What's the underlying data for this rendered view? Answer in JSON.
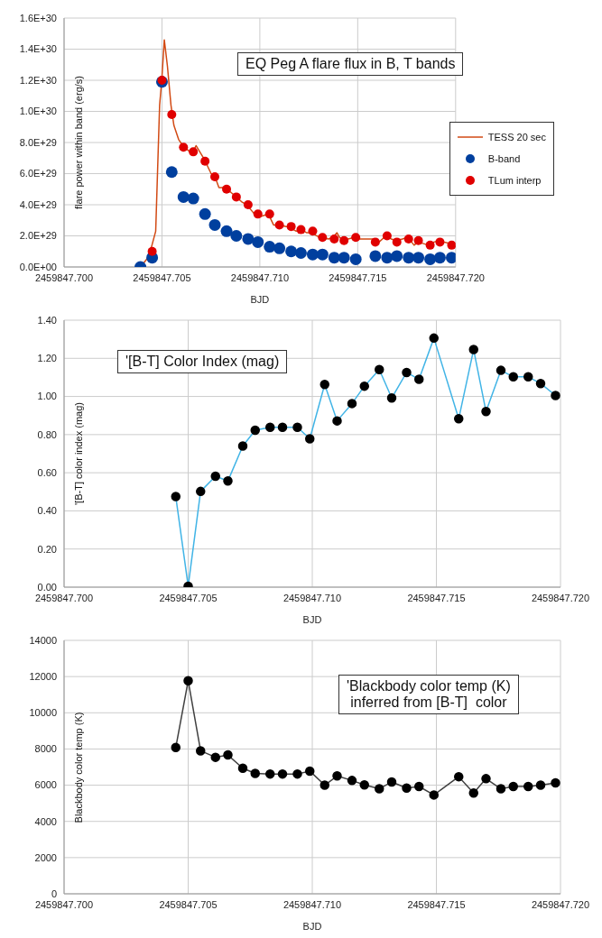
{
  "chart_data": [
    {
      "type": "line",
      "title": "EQ Peg A flare flux in B, T bands",
      "xlabel": "BJD",
      "ylabel": "flare power within band (erg/s)",
      "grid": true,
      "legend": "right",
      "xlim": [
        2459847.7,
        2459847.72
      ],
      "xticks": [
        {
          "value": 2459847.7,
          "label": "2459847.700"
        },
        {
          "value": 2459847.705,
          "label": "2459847.705"
        },
        {
          "value": 2459847.71,
          "label": "2459847.710"
        },
        {
          "value": 2459847.715,
          "label": "2459847.715"
        },
        {
          "value": 2459847.72,
          "label": "2459847.720"
        }
      ],
      "ylim": [
        0,
        1.6e+30
      ],
      "yticks": [
        {
          "value": 0,
          "label": "0.0E+00"
        },
        {
          "value": 2e+29,
          "label": "2.0E+29"
        },
        {
          "value": 4e+29,
          "label": "4.0E+29"
        },
        {
          "value": 6e+29,
          "label": "6.0E+29"
        },
        {
          "value": 8e+29,
          "label": "8.0E+29"
        },
        {
          "value": 1e+30,
          "label": "1.0E+30"
        },
        {
          "value": 1.2e+30,
          "label": "1.2E+30"
        },
        {
          "value": 1.4e+30,
          "label": "1.4E+30"
        },
        {
          "value": 1.6e+30,
          "label": "1.6E+30"
        }
      ],
      "series": [
        {
          "name": "TESS 20 sec",
          "marker": "none",
          "color": "#d24a14",
          "x": [
            2459847.70391,
            2459847.70434,
            2459847.70468,
            2459847.70488,
            2459847.70499,
            2459847.70512,
            2459847.70528,
            2459847.70546,
            2459847.70561,
            2459847.70585,
            2459847.70606,
            2459847.70643,
            2459847.70659,
            2459847.70674,
            2459847.70717,
            2459847.70751,
            2459847.70768,
            2459847.70791,
            2459847.70809,
            2459847.70826,
            2459847.70852,
            2459847.7088,
            2459847.70906,
            2459847.70933,
            2459847.70966,
            2459847.70992,
            2459847.71019,
            2459847.71044,
            2459847.7107,
            2459847.71101,
            2459847.71135,
            2459847.71158,
            2459847.71186,
            2459847.71212,
            2459847.7124,
            2459847.71267,
            2459847.7129,
            2459847.71319,
            2459847.7135,
            2459847.71373,
            2459847.71394,
            2459847.71407,
            2459847.71429,
            2459847.71451,
            2459847.71482,
            2459847.71505,
            2459847.71589,
            2459847.716,
            2459847.71644,
            2459847.71671,
            2459847.71698,
            2459847.71728,
            2459847.71753,
            2459847.71775,
            2459847.71788,
            2459847.71807,
            2459847.71836,
            2459847.71864,
            2459847.71889,
            2459847.71919,
            2459847.71943,
            2459847.71974,
            2459847.72
          ],
          "values": [
            0,
            7e+28,
            2.3e+29,
            1.04e+30,
            1.2e+30,
            1.46e+30,
            1.29e+30,
            1.04e+30,
            9.1e+29,
            8.2e+29,
            7.8e+29,
            7.4e+29,
            7.4e+29,
            7.8e+29,
            6.9e+29,
            6e+29,
            5.9e+29,
            5.1e+29,
            5.1e+29,
            5e+29,
            4.8e+29,
            4.5e+29,
            4.2e+29,
            4e+29,
            3.5e+29,
            3.2e+29,
            3.3e+29,
            3.4e+29,
            2.7e+29,
            2.7e+29,
            2.6e+29,
            2.5e+29,
            2.3e+29,
            2.4e+29,
            2.2e+29,
            2.2e+29,
            2e+29,
            1.9e+29,
            1.8e+29,
            1.9e+29,
            2.2e+29,
            1.9e+29,
            1.7e+29,
            1.8e+29,
            1.9e+29,
            1.8e+29,
            1.8e+29,
            1.5e+29,
            2e+29,
            1.8e+29,
            1.7e+29,
            1.8e+29,
            1.9e+29,
            1.6e+29,
            1.4e+29,
            1.6e+29,
            1.5e+29,
            1.4e+29,
            1.6e+29,
            1.7e+29,
            1.6e+29,
            1.5e+29,
            1.3e+29
          ]
        },
        {
          "name": "B-band",
          "type": "scatter",
          "marker": "circle",
          "color": "#003f9e",
          "x": [
            2459847.7039,
            2459847.7045,
            2459847.705,
            2459847.7055,
            2459847.7061,
            2459847.7066,
            2459847.7072,
            2459847.7077,
            2459847.7083,
            2459847.7088,
            2459847.7094,
            2459847.7099,
            2459847.7105,
            2459847.711,
            2459847.7116,
            2459847.7121,
            2459847.7127,
            2459847.7132,
            2459847.7138,
            2459847.7143,
            2459847.7149,
            2459847.7159,
            2459847.7165,
            2459847.717,
            2459847.7176,
            2459847.7181,
            2459847.7187,
            2459847.7192,
            2459847.7198
          ],
          "values": [
            0,
            6e+28,
            1.19e+30,
            6.1e+29,
            4.5e+29,
            4.4e+29,
            3.4e+29,
            2.7e+29,
            2.3e+29,
            2e+29,
            1.8e+29,
            1.6e+29,
            1.3e+29,
            1.2e+29,
            1e+29,
            9e+28,
            8e+28,
            8e+28,
            6e+28,
            6e+28,
            5e+28,
            7e+28,
            6e+28,
            7e+28,
            6e+28,
            6e+28,
            5e+28,
            6e+28,
            6e+28
          ]
        },
        {
          "name": "TLum interp",
          "type": "scatter",
          "marker": "circle",
          "color": "#e00000",
          "x": [
            2459847.7045,
            2459847.705,
            2459847.7055,
            2459847.7061,
            2459847.7066,
            2459847.7072,
            2459847.7077,
            2459847.7083,
            2459847.7088,
            2459847.7094,
            2459847.7099,
            2459847.7105,
            2459847.711,
            2459847.7116,
            2459847.7121,
            2459847.7127,
            2459847.7132,
            2459847.7138,
            2459847.7143,
            2459847.7149,
            2459847.7159,
            2459847.7165,
            2459847.717,
            2459847.7176,
            2459847.7181,
            2459847.7187,
            2459847.7192,
            2459847.7198
          ],
          "values": [
            1e+29,
            1.2e+30,
            9.8e+29,
            7.7e+29,
            7.4e+29,
            6.8e+29,
            5.8e+29,
            5e+29,
            4.5e+29,
            4e+29,
            3.4e+29,
            3.4e+29,
            2.7e+29,
            2.6e+29,
            2.4e+29,
            2.3e+29,
            1.9e+29,
            1.8e+29,
            1.7e+29,
            1.9e+29,
            1.6e+29,
            2e+29,
            1.6e+29,
            1.8e+29,
            1.7e+29,
            1.4e+29,
            1.6e+29,
            1.4e+29
          ]
        }
      ]
    },
    {
      "type": "line",
      "title": "'[B-T] Color Index (mag)",
      "xlabel": "BJD",
      "ylabel": "'[B-T] color index (mag)",
      "grid": true,
      "marker": "circle",
      "x": [
        2459847.7045,
        2459847.705,
        2459847.7055,
        2459847.7061,
        2459847.7066,
        2459847.7072,
        2459847.7077,
        2459847.7083,
        2459847.7088,
        2459847.7094,
        2459847.7099,
        2459847.7105,
        2459847.711,
        2459847.7116,
        2459847.7121,
        2459847.7127,
        2459847.7132,
        2459847.7138,
        2459847.7143,
        2459847.7149,
        2459847.7159,
        2459847.7165,
        2459847.717,
        2459847.7176,
        2459847.7181,
        2459847.7187,
        2459847.7192,
        2459847.7198
      ],
      "xlim": [
        2459847.7,
        2459847.72
      ],
      "xticks": [
        {
          "value": 2459847.7,
          "label": "2459847.700"
        },
        {
          "value": 2459847.705,
          "label": "2459847.705"
        },
        {
          "value": 2459847.71,
          "label": "2459847.710"
        },
        {
          "value": 2459847.715,
          "label": "2459847.715"
        },
        {
          "value": 2459847.72,
          "label": "2459847.720"
        }
      ],
      "ylim": [
        0,
        1.4
      ],
      "yticks": [
        {
          "value": 0,
          "label": "0.00"
        },
        {
          "value": 0.2,
          "label": "0.20"
        },
        {
          "value": 0.4,
          "label": "0.40"
        },
        {
          "value": 0.6,
          "label": "0.60"
        },
        {
          "value": 0.8,
          "label": "0.80"
        },
        {
          "value": 1,
          "label": "1.00"
        },
        {
          "value": 1.2,
          "label": "1.20"
        },
        {
          "value": 1.4,
          "label": "1.40"
        }
      ],
      "series": [
        {
          "color": "#41b4e6",
          "values": [
            0.475,
            0.005,
            0.502,
            0.582,
            0.557,
            0.74,
            0.823,
            0.838,
            0.838,
            0.838,
            0.778,
            1.063,
            0.872,
            0.963,
            1.054,
            1.141,
            0.992,
            1.126,
            1.09,
            1.306,
            0.883,
            1.246,
            0.921,
            1.137,
            1.103,
            1.103,
            1.068,
            1.005
          ]
        }
      ]
    },
    {
      "type": "line",
      "title": "'Blackbody color temp (K)\ninferred from [B-T]  color",
      "xlabel": "BJD",
      "ylabel": "Blackbody color temp (K)",
      "grid": true,
      "marker": "circle",
      "x": [
        2459847.7045,
        2459847.705,
        2459847.7055,
        2459847.7061,
        2459847.7066,
        2459847.7072,
        2459847.7077,
        2459847.7083,
        2459847.7088,
        2459847.7094,
        2459847.7099,
        2459847.7105,
        2459847.711,
        2459847.7116,
        2459847.7121,
        2459847.7127,
        2459847.7132,
        2459847.7138,
        2459847.7143,
        2459847.7149,
        2459847.7159,
        2459847.7165,
        2459847.717,
        2459847.7176,
        2459847.7181,
        2459847.7187,
        2459847.7192,
        2459847.7198
      ],
      "xlim": [
        2459847.7,
        2459847.72
      ],
      "xticks": [
        {
          "value": 2459847.7,
          "label": "2459847.700"
        },
        {
          "value": 2459847.705,
          "label": "2459847.705"
        },
        {
          "value": 2459847.71,
          "label": "2459847.710"
        },
        {
          "value": 2459847.715,
          "label": "2459847.715"
        },
        {
          "value": 2459847.72,
          "label": "2459847.720"
        }
      ],
      "ylim": [
        0,
        14000
      ],
      "yticks": [
        0,
        2000,
        4000,
        6000,
        8000,
        10000,
        12000,
        14000
      ],
      "series": [
        {
          "color": "#404040",
          "values": [
            8080,
            11770,
            7900,
            7540,
            7670,
            6940,
            6650,
            6620,
            6620,
            6620,
            6780,
            6000,
            6510,
            6260,
            6020,
            5800,
            6180,
            5840,
            5930,
            5460,
            6470,
            5570,
            6360,
            5800,
            5930,
            5930,
            6000,
            6130
          ]
        }
      ]
    }
  ]
}
